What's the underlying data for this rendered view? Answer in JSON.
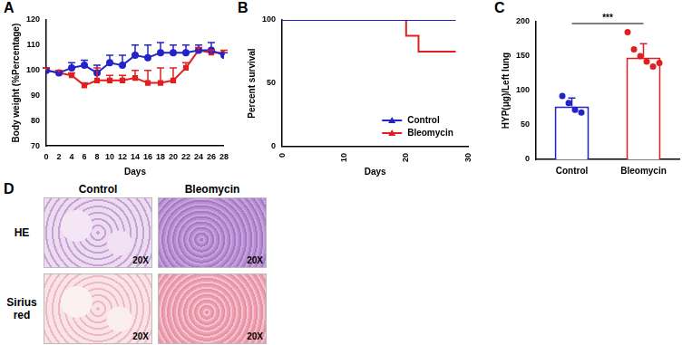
{
  "chart_data": [
    {
      "panel": "A",
      "type": "line",
      "x_label": "Days",
      "y_label": "Body weight (%Percentage)",
      "x": [
        0,
        2,
        4,
        6,
        8,
        10,
        12,
        14,
        16,
        18,
        20,
        22,
        24,
        26,
        28
      ],
      "xlim": [
        0,
        28
      ],
      "xticks": [
        0,
        2,
        4,
        6,
        8,
        10,
        12,
        14,
        16,
        18,
        20,
        22,
        24,
        26,
        28
      ],
      "ylim": [
        70,
        120
      ],
      "yticks": [
        70,
        80,
        90,
        100,
        110,
        120
      ],
      "grid": false,
      "series": [
        {
          "name": "Control",
          "color": "#2323c8",
          "marker": "circle",
          "values": [
            100,
            99,
            101,
            102,
            99,
            103,
            102,
            106,
            105,
            107,
            107,
            107,
            108,
            108,
            106
          ],
          "errors": [
            1,
            1,
            2,
            2,
            3,
            3,
            4,
            4,
            5,
            4,
            3,
            3,
            2,
            3,
            1
          ]
        },
        {
          "name": "Bleomycin",
          "color": "#e02020",
          "marker": "square",
          "values": [
            100,
            99,
            98,
            94,
            96,
            96,
            96,
            97,
            95,
            95,
            96,
            101,
            108,
            107,
            107
          ],
          "errors": [
            1,
            1,
            1,
            1,
            5,
            2,
            2,
            3,
            5,
            6,
            5,
            2,
            1,
            1,
            1
          ]
        }
      ]
    },
    {
      "panel": "B",
      "type": "line",
      "line_style": "step",
      "x_label": "Days",
      "y_label": "Percent survival",
      "xlim": [
        0,
        30
      ],
      "xticks": [
        0,
        10,
        20,
        30
      ],
      "ylim": [
        0,
        100
      ],
      "yticks": [
        0,
        50,
        100
      ],
      "grid": false,
      "legend": "bottom right",
      "series": [
        {
          "name": "Control",
          "color": "#2323c8",
          "x": [
            0,
            28
          ],
          "values": [
            100,
            100
          ]
        },
        {
          "name": "Bleomycin",
          "color": "#e02020",
          "x": [
            0,
            20,
            22,
            28
          ],
          "values": [
            100,
            87.5,
            75,
            75
          ]
        }
      ]
    },
    {
      "panel": "C",
      "type": "bar",
      "y_label": "HYP(μg)/Left lung",
      "categories": [
        "Control",
        "Bleomycin"
      ],
      "values": [
        77,
        148
      ],
      "errors": [
        12,
        20
      ],
      "points": [
        [
          92,
          82,
          72,
          68
        ],
        [
          185,
          160,
          150,
          142,
          135,
          140
        ]
      ],
      "colors": [
        "#2323c8",
        "#e02020"
      ],
      "ylim": [
        0,
        200
      ],
      "yticks": [
        0,
        50,
        100,
        150,
        200
      ],
      "grid": false,
      "annotations": [
        {
          "text": "***",
          "between": [
            "Control",
            "Bleomycin"
          ]
        }
      ]
    }
  ],
  "image_panel": {
    "panel": "D",
    "columns": [
      "Control",
      "Bleomycin"
    ],
    "rows": [
      "HE",
      "Sirius red"
    ],
    "magnification": "20X"
  }
}
